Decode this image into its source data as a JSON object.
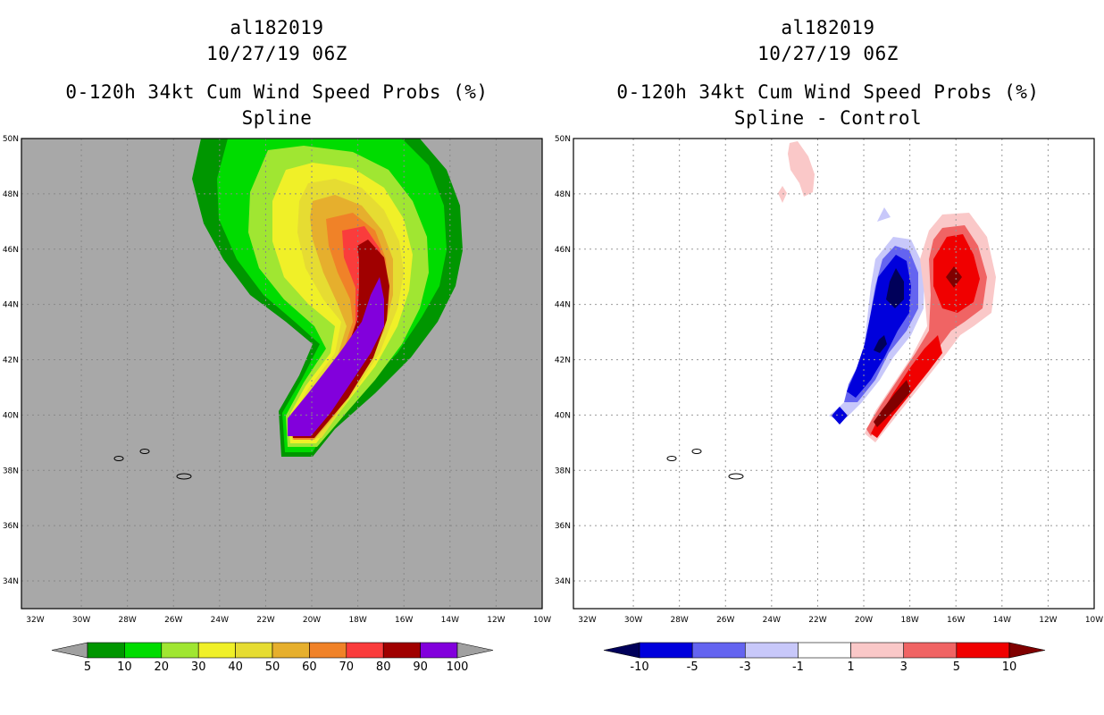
{
  "chart_data": [
    {
      "type": "contour-map",
      "title_lines": [
        "al182019",
        "10/27/19 06Z",
        "0-120h 34kt Cum Wind Speed Probs (%)",
        "Spline"
      ],
      "lat_labels": [
        "50N",
        "48N",
        "46N",
        "44N",
        "42N",
        "40N",
        "38N",
        "36N",
        "34N"
      ],
      "lon_labels": [
        "32W",
        "30W",
        "28W",
        "26W",
        "24W",
        "22W",
        "20W",
        "18W",
        "16W",
        "14W",
        "12W",
        "10W"
      ],
      "lon_range": [
        -32,
        -10
      ],
      "lat_range": [
        33,
        50
      ],
      "colorbar": {
        "labels": [
          "5",
          "10",
          "20",
          "30",
          "40",
          "50",
          "60",
          "70",
          "80",
          "90",
          "100"
        ],
        "colors": [
          "#009600",
          "#00dc00",
          "#a0e632",
          "#f0f028",
          "#e6dc32",
          "#e6af2d",
          "#f08228",
          "#fa3c3c",
          "#a00000",
          "#8200dc"
        ],
        "under": "#a0a0a0",
        "over": "#a0a0a0"
      },
      "background": "#a8a8a8"
    },
    {
      "type": "contour-map",
      "title_lines": [
        "al182019",
        "10/27/19 06Z",
        "0-120h 34kt Cum Wind Speed Probs (%)",
        "Spline - Control"
      ],
      "lat_labels": [
        "50N",
        "48N",
        "46N",
        "44N",
        "42N",
        "40N",
        "38N",
        "36N",
        "34N"
      ],
      "lon_labels": [
        "32W",
        "30W",
        "28W",
        "26W",
        "24W",
        "22W",
        "20W",
        "18W",
        "16W",
        "14W",
        "12W",
        "10W"
      ],
      "lon_range": [
        -32,
        -10
      ],
      "lat_range": [
        33,
        50
      ],
      "colorbar": {
        "labels": [
          "-10",
          "-5",
          "-3",
          "-1",
          "1",
          "3",
          "5",
          "10"
        ],
        "colors": [
          "#0000dc",
          "#6464f0",
          "#c8c8fa",
          "#ffffff",
          "#fac8c8",
          "#f06464",
          "#f00000"
        ],
        "under": "#00005a",
        "over": "#800000"
      },
      "background": "#ffffff"
    }
  ]
}
